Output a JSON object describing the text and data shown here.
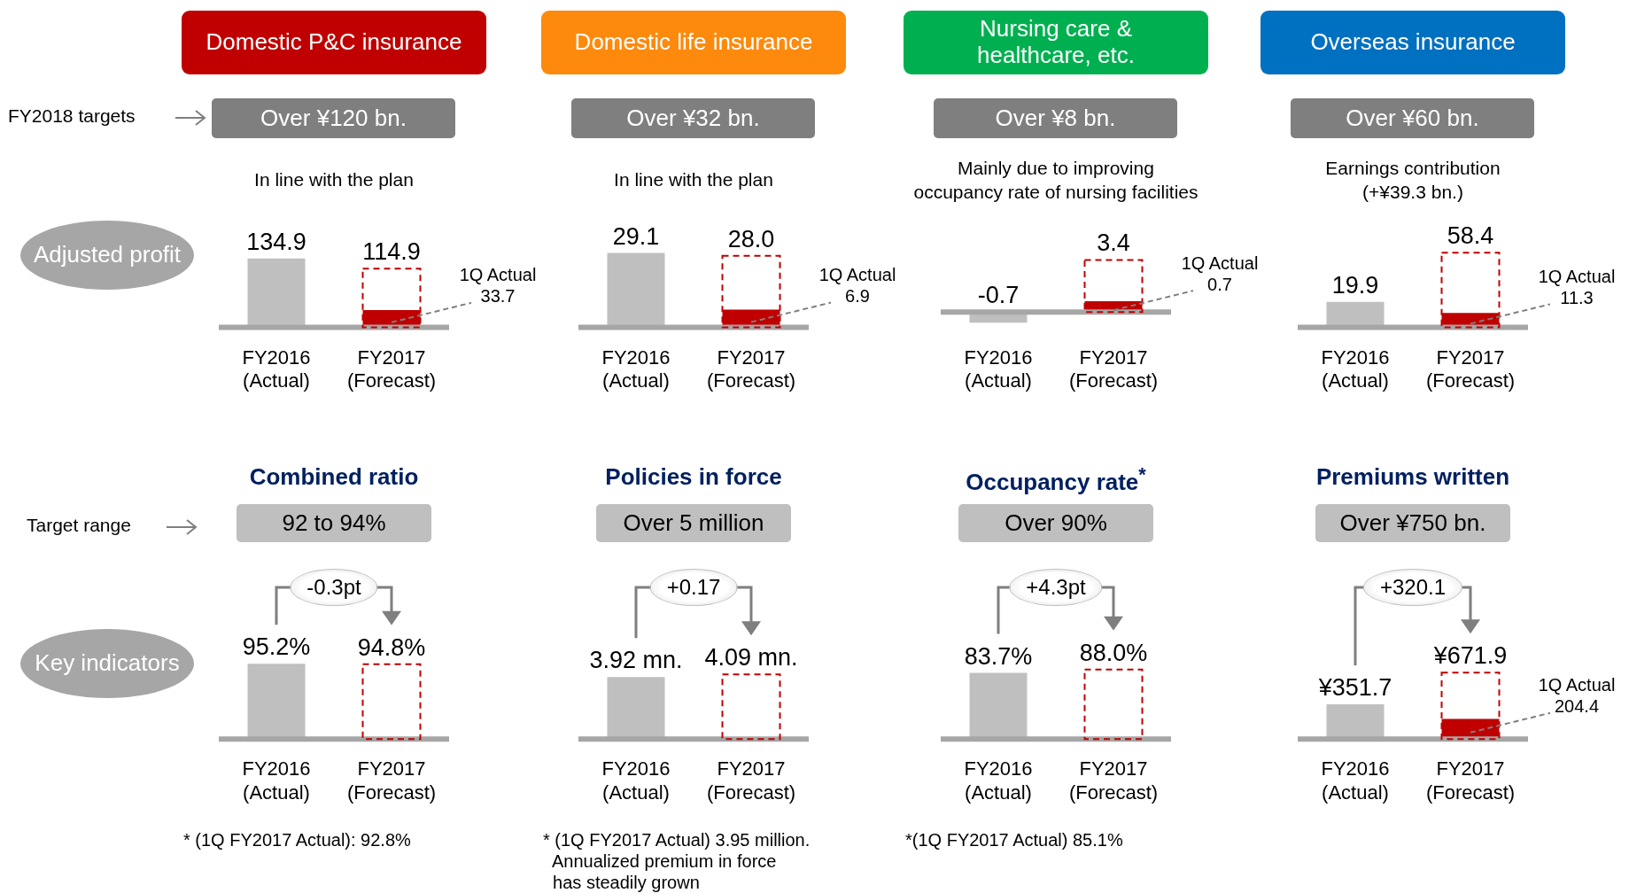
{
  "chart_data": [
    {
      "type": "bar",
      "title": "Domestic P&C insurance",
      "subtitle": "Over ¥120 bn.",
      "annotations": [
        "In line with the plan",
        "Adjusted profit",
        "FY2018 targets"
      ],
      "categories": [
        "FY2016\n(Actual)",
        "FY2017\n(Forecast)"
      ],
      "tick_labels": "x",
      "series": [
        {
          "color": "#bfbfbf",
          "values": [
            134.9,
            null
          ],
          "value_labels": [
            "134.9",
            null
          ]
        },
        {
          "color": "#c00000",
          "line_style": "dashed",
          "values": [
            null,
            114.9
          ],
          "value_labels": [
            null,
            "114.9"
          ]
        },
        {
          "name": "1Q Actual",
          "color": "#c00000",
          "values": [
            null,
            33.7
          ],
          "value_labels": [
            null,
            "33.7"
          ]
        }
      ]
    },
    {
      "type": "bar",
      "title": "Domestic life insurance",
      "subtitle": "Over ¥32 bn.",
      "annotations": [
        "In line with the plan"
      ],
      "categories": [
        "FY2016\n(Actual)",
        "FY2017\n(Forecast)"
      ],
      "tick_labels": "x",
      "series": [
        {
          "color": "#bfbfbf",
          "values": [
            29.1,
            null
          ],
          "value_labels": [
            "29.1",
            null
          ]
        },
        {
          "color": "#c00000",
          "line_style": "dashed",
          "values": [
            null,
            28.0
          ],
          "value_labels": [
            null,
            "28.0"
          ]
        },
        {
          "name": "1Q Actual",
          "color": "#c00000",
          "values": [
            null,
            6.9
          ],
          "value_labels": [
            null,
            "6.9"
          ]
        }
      ]
    },
    {
      "type": "bar",
      "title": "Nursing care &\nhealthcare, etc.",
      "subtitle": "Over ¥8 bn.",
      "annotations": [
        "Mainly due to improving\noccupancy rate of nursing facilities"
      ],
      "categories": [
        "FY2016\n(Actual)",
        "FY2017\n(Forecast)"
      ],
      "tick_labels": "x",
      "series": [
        {
          "color": "#bfbfbf",
          "values": [
            -0.7,
            null
          ],
          "value_labels": [
            "-0.7",
            null
          ]
        },
        {
          "color": "#c00000",
          "line_style": "dashed",
          "values": [
            null,
            3.4
          ],
          "value_labels": [
            null,
            "3.4"
          ]
        },
        {
          "name": "1Q Actual",
          "color": "#c00000",
          "values": [
            null,
            0.7
          ],
          "value_labels": [
            null,
            "0.7"
          ]
        }
      ]
    },
    {
      "type": "bar",
      "title": "Overseas insurance",
      "subtitle": "Over ¥60 bn.",
      "annotations": [
        "Earnings contribution\n(+¥39.3 bn.)"
      ],
      "categories": [
        "FY2016\n(Actual)",
        "FY2017\n(Forecast)"
      ],
      "tick_labels": "x",
      "series": [
        {
          "color": "#bfbfbf",
          "values": [
            19.9,
            null
          ],
          "value_labels": [
            "19.9",
            null
          ]
        },
        {
          "color": "#c00000",
          "line_style": "dashed",
          "values": [
            null,
            58.4
          ],
          "value_labels": [
            null,
            "58.4"
          ]
        },
        {
          "name": "1Q Actual",
          "color": "#c00000",
          "values": [
            null,
            11.3
          ],
          "value_labels": [
            null,
            "11.3"
          ]
        }
      ]
    },
    {
      "type": "bar",
      "title": "Combined ratio",
      "subtitle": "92 to 94%",
      "annotations": [
        "-0.3pt",
        "* (1Q FY2017 Actual): 92.8%",
        "Key indicators",
        "Target range"
      ],
      "categories": [
        "FY2016\n(Actual)",
        "FY2017\n(Forecast)"
      ],
      "tick_labels": "x",
      "series": [
        {
          "color": "#bfbfbf",
          "values": [
            95.2,
            null
          ],
          "value_labels": [
            "95.2%",
            null
          ]
        },
        {
          "color": "#c00000",
          "line_style": "dashed",
          "values": [
            null,
            94.8
          ],
          "value_labels": [
            null,
            "94.8%"
          ]
        }
      ]
    },
    {
      "type": "bar",
      "title": "Policies in force",
      "subtitle": "Over 5 million",
      "annotations": [
        "+0.17",
        "* (1Q FY2017 Actual) 3.95 million.\n  Annualized premium in force\n  has steadily grown"
      ],
      "categories": [
        "FY2016\n(Actual)",
        "FY2017\n(Forecast)"
      ],
      "tick_labels": "x",
      "series": [
        {
          "color": "#bfbfbf",
          "values": [
            3.92,
            null
          ],
          "value_labels": [
            "3.92 mn.",
            null
          ]
        },
        {
          "color": "#c00000",
          "line_style": "dashed",
          "values": [
            null,
            4.09
          ],
          "value_labels": [
            null,
            "4.09 mn."
          ]
        }
      ]
    },
    {
      "type": "bar",
      "title": "Occupancy rate$^{*}$",
      "subtitle": "Over 90%",
      "annotations": [
        "+4.3pt",
        "*(1Q FY2017 Actual) 85.1%"
      ],
      "categories": [
        "FY2016\n(Actual)",
        "FY2017\n(Forecast)"
      ],
      "tick_labels": "x",
      "series": [
        {
          "color": "#bfbfbf",
          "values": [
            83.7,
            null
          ],
          "value_labels": [
            "83.7%",
            null
          ]
        },
        {
          "color": "#c00000",
          "line_style": "dashed",
          "values": [
            null,
            88.0
          ],
          "value_labels": [
            null,
            "88.0%"
          ]
        }
      ]
    },
    {
      "type": "bar",
      "title": "Premiums written",
      "subtitle": "Over ¥750 bn.",
      "annotations": [
        "+320.1"
      ],
      "categories": [
        "FY2016\n(Actual)",
        "FY2017\n(Forecast)"
      ],
      "tick_labels": "x",
      "series": [
        {
          "color": "#bfbfbf",
          "values": [
            351.7,
            null
          ],
          "value_labels": [
            "¥351.7",
            null
          ]
        },
        {
          "color": "#c00000",
          "line_style": "dashed",
          "values": [
            null,
            671.9
          ],
          "value_labels": [
            null,
            "¥671.9"
          ]
        },
        {
          "name": "1Q Actual",
          "color": "#c00000",
          "values": [
            null,
            204.4
          ],
          "value_labels": [
            null,
            "204.4"
          ]
        }
      ]
    }
  ]
}
